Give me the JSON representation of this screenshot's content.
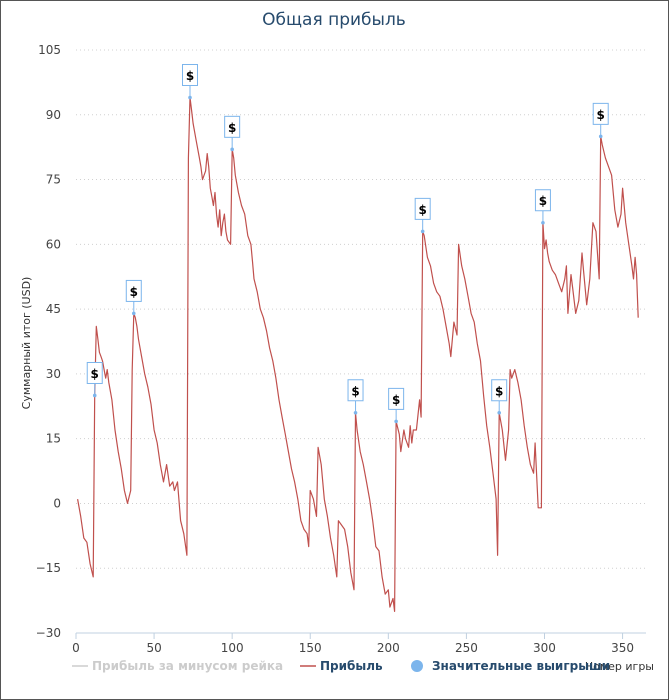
{
  "chart_data": {
    "type": "line",
    "title": "Общая прибыль",
    "xlabel": "Номер игры",
    "ylabel": "Суммарный итог (USD)",
    "xlim": [
      0,
      365
    ],
    "ylim": [
      -30,
      105
    ],
    "xticks": [
      "0",
      "50",
      "100",
      "150",
      "200",
      "250",
      "300",
      "350"
    ],
    "yticks": [
      "−30",
      "−15",
      "0",
      "15",
      "30",
      "45",
      "60",
      "75",
      "90",
      "105"
    ],
    "grid": "horizontal-dotted",
    "legend_position": "bottom",
    "series": [
      {
        "name": "Прибыль за минусом рейка",
        "color": "#cccccc",
        "visible": false,
        "values": []
      },
      {
        "name": "Прибыль",
        "color": "#c0504d",
        "visible": true,
        "values": [
          [
            1,
            1
          ],
          [
            3,
            -3
          ],
          [
            5,
            -8
          ],
          [
            7,
            -9
          ],
          [
            9,
            -14
          ],
          [
            11,
            -17
          ],
          [
            12,
            25
          ],
          [
            13,
            41
          ],
          [
            14,
            38
          ],
          [
            15,
            35
          ],
          [
            16,
            34
          ],
          [
            17,
            33
          ],
          [
            18,
            31
          ],
          [
            19,
            29
          ],
          [
            20,
            31
          ],
          [
            21,
            28
          ],
          [
            23,
            24
          ],
          [
            25,
            17
          ],
          [
            27,
            12
          ],
          [
            29,
            8
          ],
          [
            31,
            3
          ],
          [
            33,
            0
          ],
          [
            35,
            3
          ],
          [
            36,
            31
          ],
          [
            37,
            44
          ],
          [
            38,
            43
          ],
          [
            39,
            41
          ],
          [
            40,
            38
          ],
          [
            42,
            34
          ],
          [
            44,
            30
          ],
          [
            46,
            27
          ],
          [
            48,
            23
          ],
          [
            50,
            17
          ],
          [
            52,
            14
          ],
          [
            54,
            9
          ],
          [
            56,
            5
          ],
          [
            58,
            9
          ],
          [
            60,
            4
          ],
          [
            62,
            5
          ],
          [
            63,
            3
          ],
          [
            65,
            5
          ],
          [
            67,
            -4
          ],
          [
            69,
            -7
          ],
          [
            71,
            -12
          ],
          [
            72,
            80
          ],
          [
            73,
            94
          ],
          [
            74,
            91
          ],
          [
            75,
            88
          ],
          [
            77,
            84
          ],
          [
            79,
            80
          ],
          [
            80,
            78
          ],
          [
            81,
            75
          ],
          [
            83,
            77
          ],
          [
            84,
            81
          ],
          [
            85,
            78
          ],
          [
            86,
            73
          ],
          [
            87,
            71
          ],
          [
            88,
            69
          ],
          [
            89,
            72
          ],
          [
            90,
            67
          ],
          [
            91,
            64
          ],
          [
            92,
            68
          ],
          [
            93,
            62
          ],
          [
            94,
            65
          ],
          [
            95,
            67
          ],
          [
            96,
            63
          ],
          [
            97,
            61
          ],
          [
            99,
            60
          ],
          [
            100,
            82
          ],
          [
            101,
            80
          ],
          [
            102,
            76
          ],
          [
            104,
            72
          ],
          [
            106,
            69
          ],
          [
            108,
            67
          ],
          [
            110,
            62
          ],
          [
            112,
            60
          ],
          [
            113,
            56
          ],
          [
            114,
            52
          ],
          [
            116,
            49
          ],
          [
            118,
            45
          ],
          [
            120,
            43
          ],
          [
            122,
            40
          ],
          [
            124,
            36
          ],
          [
            126,
            33
          ],
          [
            128,
            29
          ],
          [
            130,
            24
          ],
          [
            132,
            20
          ],
          [
            134,
            16
          ],
          [
            136,
            12
          ],
          [
            138,
            8
          ],
          [
            140,
            5
          ],
          [
            142,
            1
          ],
          [
            144,
            -4
          ],
          [
            146,
            -6
          ],
          [
            148,
            -7
          ],
          [
            149,
            -10
          ],
          [
            150,
            3
          ],
          [
            152,
            1
          ],
          [
            154,
            -3
          ],
          [
            155,
            13
          ],
          [
            157,
            9
          ],
          [
            159,
            1
          ],
          [
            161,
            -3
          ],
          [
            163,
            -8
          ],
          [
            165,
            -12
          ],
          [
            167,
            -17
          ],
          [
            168,
            -4
          ],
          [
            170,
            -5
          ],
          [
            172,
            -6
          ],
          [
            174,
            -10
          ],
          [
            176,
            -16
          ],
          [
            178,
            -20
          ],
          [
            179,
            21
          ],
          [
            180,
            17
          ],
          [
            182,
            12
          ],
          [
            184,
            9
          ],
          [
            186,
            5
          ],
          [
            188,
            1
          ],
          [
            190,
            -4
          ],
          [
            192,
            -10
          ],
          [
            194,
            -11
          ],
          [
            196,
            -17
          ],
          [
            198,
            -21
          ],
          [
            200,
            -20
          ],
          [
            201,
            -24
          ],
          [
            203,
            -22
          ],
          [
            204,
            -25
          ],
          [
            205,
            19
          ],
          [
            207,
            16
          ],
          [
            208,
            12
          ],
          [
            210,
            17
          ],
          [
            211,
            15
          ],
          [
            213,
            13
          ],
          [
            214,
            18
          ],
          [
            215,
            14
          ],
          [
            216,
            17
          ],
          [
            218,
            17
          ],
          [
            220,
            24
          ],
          [
            221,
            20
          ],
          [
            222,
            63
          ],
          [
            223,
            62
          ],
          [
            225,
            57
          ],
          [
            227,
            55
          ],
          [
            229,
            51
          ],
          [
            231,
            49
          ],
          [
            233,
            48
          ],
          [
            235,
            45
          ],
          [
            237,
            41
          ],
          [
            239,
            37
          ],
          [
            240,
            34
          ],
          [
            242,
            42
          ],
          [
            244,
            39
          ],
          [
            245,
            60
          ],
          [
            247,
            55
          ],
          [
            249,
            52
          ],
          [
            251,
            48
          ],
          [
            253,
            44
          ],
          [
            255,
            42
          ],
          [
            257,
            37
          ],
          [
            259,
            33
          ],
          [
            261,
            25
          ],
          [
            263,
            18
          ],
          [
            265,
            13
          ],
          [
            267,
            7
          ],
          [
            269,
            1
          ],
          [
            270,
            -12
          ],
          [
            271,
            21
          ],
          [
            273,
            17
          ],
          [
            275,
            10
          ],
          [
            277,
            17
          ],
          [
            278,
            31
          ],
          [
            279,
            29
          ],
          [
            281,
            31
          ],
          [
            283,
            28
          ],
          [
            285,
            24
          ],
          [
            287,
            18
          ],
          [
            289,
            13
          ],
          [
            291,
            9
          ],
          [
            293,
            7
          ],
          [
            294,
            14
          ],
          [
            296,
            -1
          ],
          [
            298,
            -1
          ],
          [
            299,
            65
          ],
          [
            300,
            59
          ],
          [
            301,
            61
          ],
          [
            302,
            58
          ],
          [
            303,
            56
          ],
          [
            305,
            54
          ],
          [
            307,
            53
          ],
          [
            309,
            51
          ],
          [
            311,
            49
          ],
          [
            313,
            52
          ],
          [
            314,
            55
          ],
          [
            315,
            44
          ],
          [
            317,
            53
          ],
          [
            318,
            50
          ],
          [
            320,
            44
          ],
          [
            322,
            47
          ],
          [
            324,
            58
          ],
          [
            325,
            54
          ],
          [
            327,
            46
          ],
          [
            329,
            52
          ],
          [
            331,
            65
          ],
          [
            333,
            63
          ],
          [
            335,
            52
          ],
          [
            336,
            85
          ],
          [
            337,
            83
          ],
          [
            339,
            80
          ],
          [
            341,
            78
          ],
          [
            343,
            76
          ],
          [
            345,
            68
          ],
          [
            347,
            64
          ],
          [
            349,
            67
          ],
          [
            350,
            73
          ],
          [
            352,
            65
          ],
          [
            354,
            60
          ],
          [
            356,
            55
          ],
          [
            357,
            52
          ],
          [
            358,
            57
          ],
          [
            359,
            53
          ],
          [
            360,
            43
          ]
        ]
      },
      {
        "name": "Значительные выигрыши",
        "color": "#7cb5ec",
        "type": "flags",
        "flag_label": "$",
        "values": [
          [
            12,
            25
          ],
          [
            37,
            44
          ],
          [
            73,
            94
          ],
          [
            100,
            82
          ],
          [
            179,
            21
          ],
          [
            205,
            19
          ],
          [
            222,
            63
          ],
          [
            271,
            21
          ],
          [
            299,
            65
          ],
          [
            336,
            85
          ]
        ]
      }
    ]
  }
}
